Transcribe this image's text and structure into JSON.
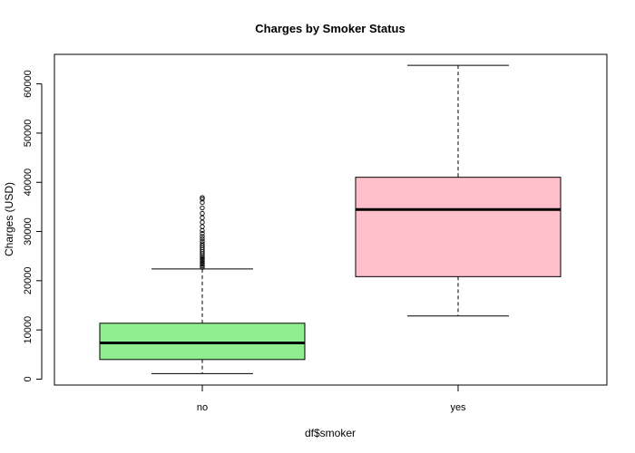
{
  "chart_data": {
    "type": "box",
    "title": "Charges by Smoker Status",
    "xlabel": "df$smoker",
    "ylabel": "Charges (USD)",
    "categories": [
      "no",
      "yes"
    ],
    "y_ticks": [
      0,
      10000,
      20000,
      30000,
      40000,
      50000,
      60000
    ],
    "y_tick_labels": [
      "0",
      "10000",
      "20000",
      "30000",
      "40000",
      "50000",
      "60000"
    ],
    "ylim": [
      -1200,
      66000
    ],
    "grid": false,
    "legend": "none",
    "boxes": [
      {
        "category": "no",
        "min": 1120,
        "q1": 3990,
        "median": 7350,
        "q3": 11360,
        "max": 22400,
        "outliers": [
          22700,
          23000,
          23300,
          23600,
          23900,
          24200,
          24500,
          24800,
          25100,
          25500,
          25900,
          26300,
          26700,
          27100,
          27500,
          28000,
          28500,
          29000,
          29600,
          30200,
          31000,
          31900,
          32800,
          33700,
          34800,
          35900,
          36600,
          36900
        ],
        "fill": "#90ee90"
      },
      {
        "category": "yes",
        "min": 12830,
        "q1": 20830,
        "median": 34460,
        "q3": 41020,
        "max": 63770,
        "outliers": [],
        "fill": "#ffc0cb"
      }
    ],
    "colors": {
      "no": "#90ee90",
      "yes": "#ffc0cb",
      "median": "#000000",
      "frame": "#000000"
    }
  }
}
